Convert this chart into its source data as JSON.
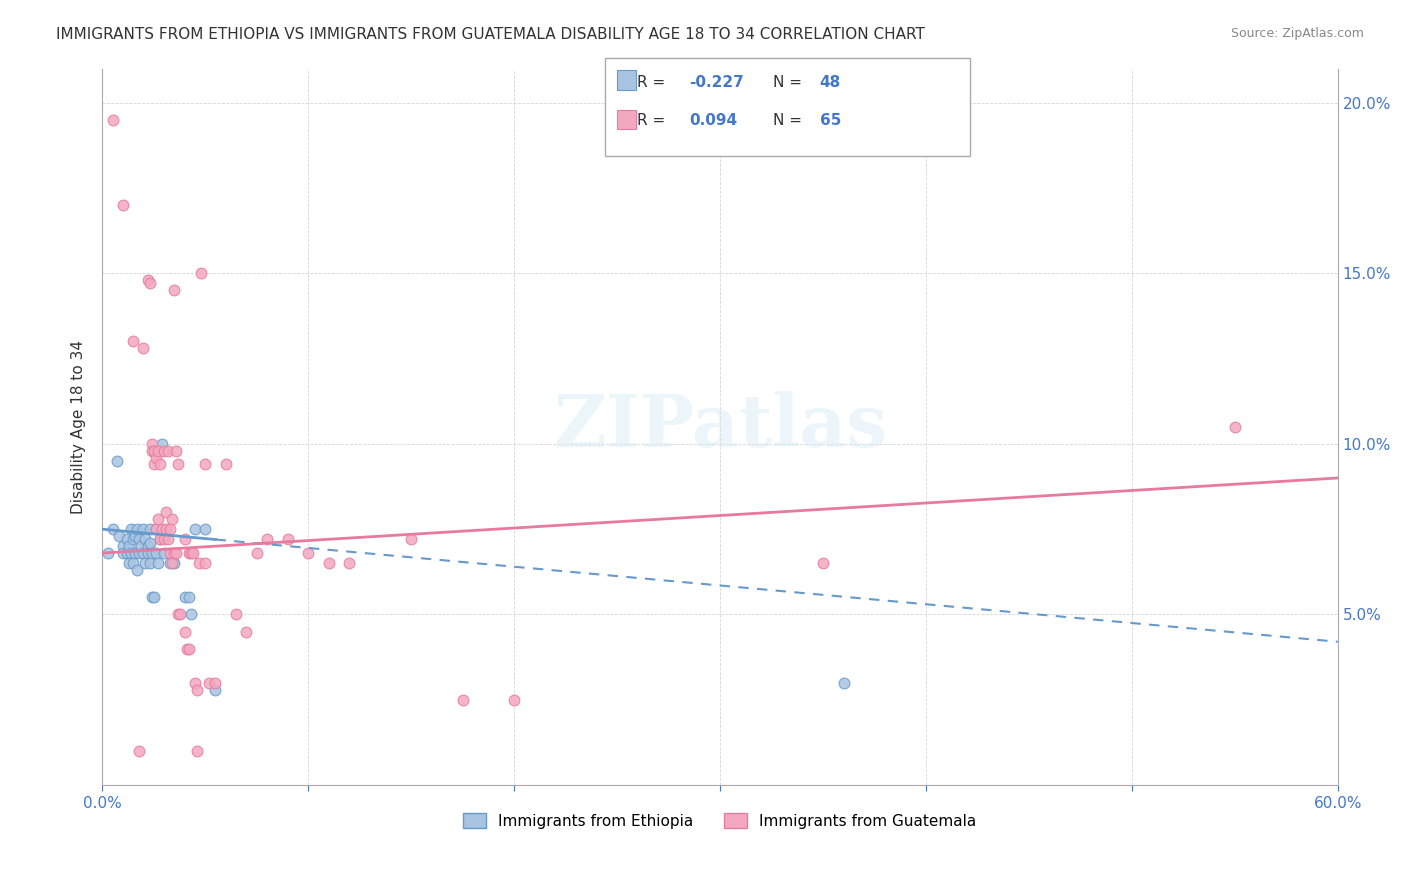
{
  "title": "IMMIGRANTS FROM ETHIOPIA VS IMMIGRANTS FROM GUATEMALA DISABILITY AGE 18 TO 34 CORRELATION CHART",
  "source": "Source: ZipAtlas.com",
  "xlabel": "",
  "ylabel": "Disability Age 18 to 34",
  "xlim": [
    0.0,
    0.6
  ],
  "ylim": [
    0.0,
    0.21
  ],
  "xticks": [
    0.0,
    0.1,
    0.2,
    0.3,
    0.4,
    0.5,
    0.6
  ],
  "yticks": [
    0.0,
    0.05,
    0.1,
    0.15,
    0.2
  ],
  "xticklabels": [
    "0.0%",
    "",
    "",
    "",
    "",
    "",
    "60.0%"
  ],
  "yticklabels": [
    "",
    "5.0%",
    "10.0%",
    "15.0%",
    "20.0%"
  ],
  "color_ethiopia": "#a8c4e0",
  "color_guatemala": "#f4a8c0",
  "color_line_ethiopia": "#6699cc",
  "color_line_guatemala": "#e87a9f",
  "R_ethiopia": -0.227,
  "N_ethiopia": 48,
  "R_guatemala": 0.094,
  "N_guatemala": 65,
  "legend_R_color": "#333333",
  "legend_N_color": "#4477cc",
  "watermark": "ZIPatlas",
  "ethiopia_scatter": [
    [
      0.005,
      0.075
    ],
    [
      0.008,
      0.073
    ],
    [
      0.01,
      0.07
    ],
    [
      0.01,
      0.068
    ],
    [
      0.012,
      0.072
    ],
    [
      0.012,
      0.068
    ],
    [
      0.013,
      0.07
    ],
    [
      0.013,
      0.065
    ],
    [
      0.014,
      0.075
    ],
    [
      0.014,
      0.068
    ],
    [
      0.015,
      0.072
    ],
    [
      0.015,
      0.065
    ],
    [
      0.016,
      0.073
    ],
    [
      0.016,
      0.068
    ],
    [
      0.017,
      0.075
    ],
    [
      0.017,
      0.063
    ],
    [
      0.018,
      0.072
    ],
    [
      0.018,
      0.068
    ],
    [
      0.019,
      0.07
    ],
    [
      0.02,
      0.075
    ],
    [
      0.02,
      0.068
    ],
    [
      0.021,
      0.072
    ],
    [
      0.021,
      0.065
    ],
    [
      0.022,
      0.07
    ],
    [
      0.022,
      0.068
    ],
    [
      0.023,
      0.071
    ],
    [
      0.023,
      0.075
    ],
    [
      0.023,
      0.065
    ],
    [
      0.024,
      0.068
    ],
    [
      0.024,
      0.055
    ],
    [
      0.025,
      0.055
    ],
    [
      0.026,
      0.075
    ],
    [
      0.026,
      0.068
    ],
    [
      0.027,
      0.065
    ],
    [
      0.028,
      0.072
    ],
    [
      0.029,
      0.1
    ],
    [
      0.03,
      0.068
    ],
    [
      0.033,
      0.065
    ],
    [
      0.035,
      0.065
    ],
    [
      0.04,
      0.055
    ],
    [
      0.042,
      0.055
    ],
    [
      0.043,
      0.05
    ],
    [
      0.045,
      0.075
    ],
    [
      0.05,
      0.075
    ],
    [
      0.055,
      0.028
    ],
    [
      0.36,
      0.03
    ],
    [
      0.007,
      0.095
    ],
    [
      0.003,
      0.068
    ]
  ],
  "guatemala_scatter": [
    [
      0.005,
      0.195
    ],
    [
      0.01,
      0.17
    ],
    [
      0.015,
      0.13
    ],
    [
      0.02,
      0.128
    ],
    [
      0.022,
      0.148
    ],
    [
      0.023,
      0.147
    ],
    [
      0.024,
      0.1
    ],
    [
      0.024,
      0.098
    ],
    [
      0.025,
      0.098
    ],
    [
      0.025,
      0.094
    ],
    [
      0.026,
      0.096
    ],
    [
      0.026,
      0.075
    ],
    [
      0.027,
      0.098
    ],
    [
      0.027,
      0.078
    ],
    [
      0.028,
      0.094
    ],
    [
      0.028,
      0.072
    ],
    [
      0.029,
      0.075
    ],
    [
      0.03,
      0.098
    ],
    [
      0.03,
      0.072
    ],
    [
      0.031,
      0.08
    ],
    [
      0.031,
      0.075
    ],
    [
      0.032,
      0.098
    ],
    [
      0.032,
      0.072
    ],
    [
      0.033,
      0.075
    ],
    [
      0.033,
      0.068
    ],
    [
      0.034,
      0.078
    ],
    [
      0.034,
      0.065
    ],
    [
      0.035,
      0.145
    ],
    [
      0.035,
      0.068
    ],
    [
      0.036,
      0.098
    ],
    [
      0.036,
      0.068
    ],
    [
      0.037,
      0.094
    ],
    [
      0.037,
      0.05
    ],
    [
      0.038,
      0.05
    ],
    [
      0.04,
      0.072
    ],
    [
      0.04,
      0.045
    ],
    [
      0.041,
      0.04
    ],
    [
      0.042,
      0.068
    ],
    [
      0.042,
      0.04
    ],
    [
      0.043,
      0.068
    ],
    [
      0.044,
      0.068
    ],
    [
      0.045,
      0.03
    ],
    [
      0.046,
      0.028
    ],
    [
      0.047,
      0.065
    ],
    [
      0.048,
      0.15
    ],
    [
      0.05,
      0.094
    ],
    [
      0.05,
      0.065
    ],
    [
      0.052,
      0.03
    ],
    [
      0.055,
      0.03
    ],
    [
      0.06,
      0.094
    ],
    [
      0.065,
      0.05
    ],
    [
      0.07,
      0.045
    ],
    [
      0.075,
      0.068
    ],
    [
      0.08,
      0.072
    ],
    [
      0.09,
      0.072
    ],
    [
      0.1,
      0.068
    ],
    [
      0.11,
      0.065
    ],
    [
      0.12,
      0.065
    ],
    [
      0.15,
      0.072
    ],
    [
      0.175,
      0.025
    ],
    [
      0.2,
      0.025
    ],
    [
      0.35,
      0.065
    ],
    [
      0.55,
      0.105
    ],
    [
      0.018,
      0.01
    ],
    [
      0.046,
      0.01
    ]
  ],
  "ethiopia_line_x": [
    0.0,
    0.6
  ],
  "ethiopia_line_y_start": 0.075,
  "ethiopia_line_y_end": 0.042,
  "guatemala_line_x": [
    0.0,
    0.6
  ],
  "guatemala_line_y_start": 0.068,
  "guatemala_line_y_end": 0.09
}
